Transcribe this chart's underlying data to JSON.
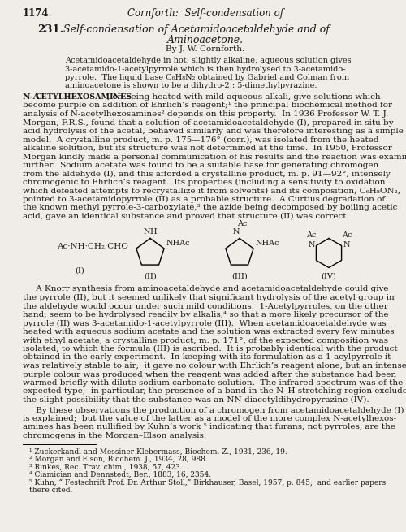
{
  "bg_color": "#f0ede8",
  "text_color": "#1a1a1a",
  "page_number": "1174",
  "header": "Cornforth:  Self-condensation of",
  "title_num": "231.",
  "title_line1": "Self-condensation of Acetamidoacetaldehyde and of",
  "title_line2": "Aminoacetone.",
  "byline": "By J. W. Cornforth.",
  "abstract_lines": [
    "Acetamidoacetaldehyde in hot, slightly alkaline, aqueous solution gives",
    "3-acetamido-1-acetylpyrrole which is then hydrolysed to 3-acetamido-",
    "pyrrole.  The liquid base C₆H₈N₂ obtained by Gabriel and Colman from",
    "aminoacetone is shown to be a dihydro-2 : 5-dimethylpyrazine."
  ],
  "p1_line1_a": "N-A",
  "p1_line1_b": "cetylhexosamines",
  "p1_line1_c": ", on being heated with mild aqueous alkali, give solutions which",
  "p1_lines": [
    "become purple on addition of Ehrlich’s reagent;¹ the principal biochemical method for",
    "analysis of N-acetylhexosamines² depends on this property.  In 1936 Professor W. T. J.",
    "Morgan, F.R.S., found that a solution of acetamidoacetaldehyde (I), prepared in situ by",
    "acid hydrolysis of the acetal, behaved similarly and was therefore interesting as a simple",
    "model.  A crystalline product, m. p. 175—176° (corr.), was isolated from the heated",
    "alkaline solution, but its structure was not determined at the time.  In 1950, Professor",
    "Morgan kindly made a personal communication of his results and the reaction was examined",
    "further.  Sodium acetate was found to be a suitable base for generating chromogen",
    "from the aldehyde (I), and this afforded a crystalline product, m. p. 91—92°, intensely",
    "chromogenic to Ehrlich’s reagent.  Its properties (including a sensitivity to oxidation",
    "which defeated attempts to recrystallize it from solvents) and its composition, C₆H₈ON₂,",
    "pointed to 3-acetamidopyrrole (II) as a probable structure.  A Curtius degradation of",
    "the known methyl pyrrole-3-carboxylate,³ the azide being decomposed by boiling acetic",
    "acid, gave an identical substance and proved that structure (II) was correct."
  ],
  "p2_lines": [
    "     A Knorr synthesis from aminoacetaldehyde and acetamidoacetaldehyde could give",
    "the pyrrole (II), but it seemed unlikely that significant hydrolysis of the acetyl group in",
    "the aldehyde would occur under such mild conditions.  1-Acetylpyrroles, on the other",
    "hand, seem to be hydrolysed readily by alkalis,⁴ so that a more likely precursor of the",
    "pyrrole (II) was 3-acetamido-1-acetylpyrrole (III).  When acetamidoacetaldehyde was",
    "heated with aqueous sodium acetate and the solution was extracted every few minutes",
    "with ethyl acetate, a crystalline product, m. p. 171°, of the expected composition was",
    "isolated, to which the formula (III) is ascribed.  It is probably identical with the product",
    "obtained in the early experiment.  In keeping with its formulation as a 1-acylpyrrole it",
    "was relatively stable to air;  it gave no colour with Ehrlich’s reagent alone, but an intense",
    "purple colour was produced when the reagent was added after the substance had been",
    "warmed briefly with dilute sodium carbonate solution.  The infrared spectrum was of the",
    "expected type;  in particular, the presence of a band in the N–H stretching region excluded",
    "the slight possibility that the substance was an NN-diacetyldihydropyrazine (IV)."
  ],
  "p3_lines": [
    "     By these observations the production of a chromogen from acetamidoacetaldehyde (I)",
    "is explained;  but the value of the latter as a model of the more complex N-acetylhexos-",
    "amines has been nullified by Kuhn’s work ⁵ indicating that furans, not pyrroles, are the",
    "chromogens in the Morgan–Elson analysis."
  ],
  "footnotes": [
    "¹ Zuckerkandl and Messiner-Klebermass, Biochem. Z., 1931, 236, 19.",
    "² Morgan and Elson, Biochem. J., 1934, 28, 988.",
    "³ Rinkes, Rec. Trav. chim., 1938, 57, 423.",
    "⁴ Ciamician and Dennstedt, Ber., 1883, 16, 2354.",
    "⁵ Kuhn, “ Festschrift Prof. Dr. Arthur Stoll,” Birkhauser, Basel, 1957, p. 845;  and earlier papers"
  ],
  "footnote_last": "there cited."
}
